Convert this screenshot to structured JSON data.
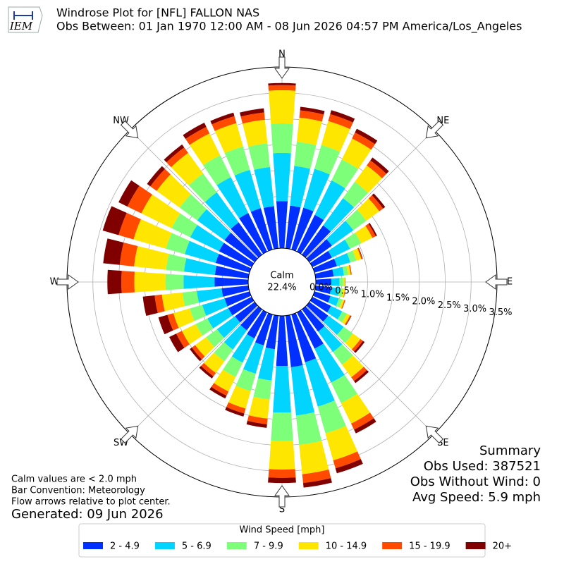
{
  "chart_data": {
    "type": "windrose",
    "title": "Windrose Plot for [NFL] FALLON NAS",
    "subtitle": "Obs Between: 01 Jan 1970 12:00 AM - 08 Jun 2026 04:57 PM America/Los_Angeles",
    "logo_text": "IEM",
    "x": [
      0,
      10,
      20,
      30,
      40,
      50,
      60,
      70,
      80,
      90,
      100,
      110,
      120,
      130,
      140,
      150,
      160,
      170,
      180,
      190,
      200,
      210,
      220,
      230,
      240,
      250,
      260,
      270,
      280,
      290,
      300,
      310,
      320,
      330,
      340,
      350
    ],
    "series": [
      {
        "name": "2 - 4.9",
        "color": "#0030ff",
        "values": [
          0.91,
          0.83,
          0.84,
          0.79,
          0.7,
          0.54,
          0.42,
          0.45,
          0.35,
          0.3,
          0.3,
          0.32,
          0.4,
          0.45,
          0.53,
          0.78,
          0.96,
          1.0,
          0.97,
          0.65,
          0.62,
          0.56,
          0.5,
          0.47,
          0.5,
          0.5,
          0.52,
          0.65,
          0.65,
          0.68,
          0.7,
          0.72,
          0.77,
          0.83,
          0.83,
          0.82
        ]
      },
      {
        "name": "5 - 6.9",
        "color": "#00d4ff",
        "values": [
          0.93,
          0.77,
          0.78,
          0.74,
          0.65,
          0.51,
          0.39,
          0.27,
          0.2,
          0.16,
          0.16,
          0.17,
          0.24,
          0.37,
          0.49,
          0.73,
          0.89,
          0.94,
          0.9,
          0.61,
          0.57,
          0.52,
          0.46,
          0.43,
          0.45,
          0.45,
          0.48,
          0.6,
          0.6,
          0.62,
          0.62,
          0.65,
          0.72,
          0.77,
          0.77,
          0.76
        ]
      },
      {
        "name": "7 - 9.9",
        "color": "#7dff7a",
        "values": [
          0.57,
          0.47,
          0.48,
          0.45,
          0.39,
          0.31,
          0.24,
          0.12,
          0.08,
          0.07,
          0.07,
          0.07,
          0.1,
          0.22,
          0.3,
          0.44,
          0.54,
          0.57,
          0.55,
          0.37,
          0.35,
          0.31,
          0.28,
          0.26,
          0.25,
          0.25,
          0.28,
          0.35,
          0.35,
          0.38,
          0.4,
          0.42,
          0.45,
          0.47,
          0.47,
          0.46
        ]
      },
      {
        "name": "10 - 14.9",
        "color": "#ffe600",
        "values": [
          0.64,
          0.47,
          0.48,
          0.45,
          0.39,
          0.31,
          0.24,
          0.1,
          0.05,
          0.03,
          0.04,
          0.04,
          0.07,
          0.18,
          0.3,
          0.44,
          0.54,
          0.57,
          0.55,
          0.37,
          0.35,
          0.31,
          0.28,
          0.26,
          0.3,
          0.33,
          0.4,
          0.6,
          0.62,
          0.65,
          0.65,
          0.55,
          0.49,
          0.47,
          0.47,
          0.46
        ]
      },
      {
        "name": "15 - 19.9",
        "color": "#ff4a00",
        "values": [
          0.1,
          0.14,
          0.14,
          0.13,
          0.12,
          0.09,
          0.07,
          0.02,
          0.02,
          0.01,
          0.01,
          0.02,
          0.02,
          0.06,
          0.09,
          0.13,
          0.16,
          0.17,
          0.16,
          0.11,
          0.1,
          0.09,
          0.08,
          0.08,
          0.12,
          0.12,
          0.14,
          0.25,
          0.28,
          0.3,
          0.3,
          0.15,
          0.13,
          0.14,
          0.14,
          0.14
        ]
      },
      {
        "name": "20+",
        "color": "#800000",
        "values": [
          0.04,
          0.07,
          0.08,
          0.08,
          0.07,
          0.05,
          0.03,
          0.01,
          0,
          0,
          0,
          0,
          0.01,
          0.04,
          0.05,
          0.08,
          0.1,
          0.09,
          0.1,
          0.07,
          0.06,
          0.06,
          0.05,
          0.05,
          0.15,
          0.18,
          0.23,
          0.27,
          0.32,
          0.32,
          0.19,
          0.08,
          0.07,
          0.09,
          0.07,
          0.08
        ]
      }
    ],
    "rlim": [
      0,
      3.5
    ],
    "rticks": [
      {
        "value": 0,
        "label": "0.0%"
      },
      {
        "value": 0.5,
        "label": "0.5%"
      },
      {
        "value": 1,
        "label": "1.0%"
      },
      {
        "value": 1.5,
        "label": "1.5%"
      },
      {
        "value": 2,
        "label": "2.0%"
      },
      {
        "value": 2.5,
        "label": "2.5%"
      },
      {
        "value": 3,
        "label": "3.0%"
      },
      {
        "value": 3.5,
        "label": "3.5%"
      }
    ],
    "grid": true,
    "compass_labels": [
      "N",
      "NE",
      "E",
      "SE",
      "S",
      "SW",
      "W",
      "NW"
    ],
    "calm": {
      "label": "Calm",
      "value": 22.4,
      "value_label": "22.4%"
    },
    "legend_title": "Wind Speed [mph]",
    "summary": [
      "Summary",
      "Obs Used: 387521",
      "Obs Without Wind: 0",
      "Avg Speed: 5.9 mph"
    ],
    "notes": [
      "Calm values are < 2.0 mph",
      "Bar Convention: Meteorology",
      "Flow arrows relative to plot center."
    ],
    "generated": "Generated: 09 Jun 2026"
  }
}
